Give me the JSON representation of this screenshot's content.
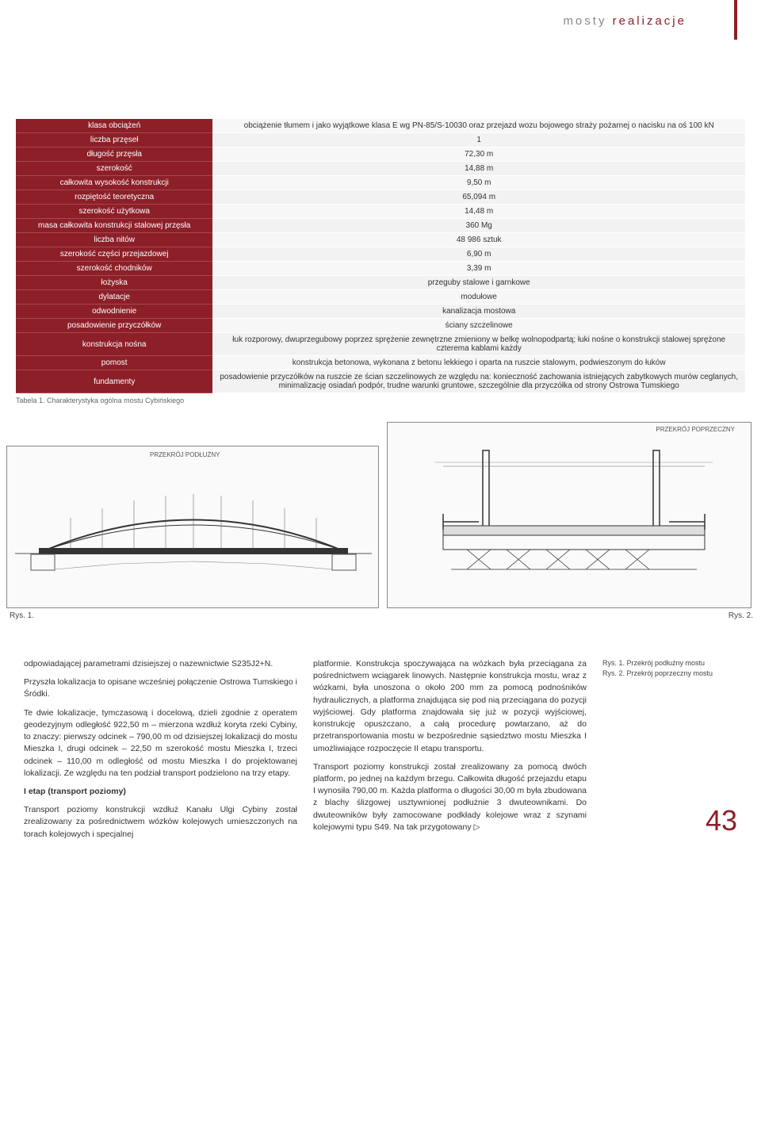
{
  "header": {
    "word1": "mosty",
    "word2": "realizacje"
  },
  "table": {
    "caption": "Tabela 1. Charakterystyka ogólna mostu Cybińskiego",
    "rows": [
      {
        "label": "klasa obciążeń",
        "value": "obciążenie tłumem i jako wyjątkowe klasa E wg PN-85/S-10030 oraz przejazd wozu bojowego straży pożarnej o nacisku na oś 100 kN"
      },
      {
        "label": "liczba przęseł",
        "value": "1"
      },
      {
        "label": "długość przęsła",
        "value": "72,30 m"
      },
      {
        "label": "szerokość",
        "value": "14,88 m"
      },
      {
        "label": "całkowita wysokość konstrukcji",
        "value": "9,50 m"
      },
      {
        "label": "rozpiętość teoretyczna",
        "value": "65,094 m"
      },
      {
        "label": "szerokość użytkowa",
        "value": "14,48 m"
      },
      {
        "label": "masa całkowita konstrukcji stalowej przęsła",
        "value": "360 Mg"
      },
      {
        "label": "liczba nitów",
        "value": "48 986 sztuk"
      },
      {
        "label": "szerokość części przejazdowej",
        "value": "6,90 m"
      },
      {
        "label": "szerokość chodników",
        "value": "3,39 m"
      },
      {
        "label": "łożyska",
        "value": "przeguby stalowe i garnkowe"
      },
      {
        "label": "dylatacje",
        "value": "modułowe"
      },
      {
        "label": "odwodnienie",
        "value": "kanalizacja mostowa"
      },
      {
        "label": "posadowienie przyczółków",
        "value": "ściany szczelinowe"
      },
      {
        "label": "konstrukcja nośna",
        "value": "łuk rozporowy, dwuprzegubowy poprzez sprężenie zewnętrzne zmieniony w belkę wolnopodpartą; łuki nośne o konstrukcji stalowej sprężone czterema kablami każdy"
      },
      {
        "label": "pomost",
        "value": "konstrukcja betonowa, wykonana z betonu lekkiego i oparta na ruszcie stalowym, podwieszonym do łuków"
      },
      {
        "label": "fundamenty",
        "value": "posadowienie przyczółków na ruszcie ze ścian szczelinowych ze względu na: konieczność zachowania istniejących zabytkowych murów ceglanych, minimalizację osiadań podpór, trudne warunki gruntowe, szczególnie dla przyczółka od strony Ostrowa Tumskiego"
      }
    ]
  },
  "figures": {
    "fig1_label": "Rys. 1.",
    "fig2_label": "Rys. 2.",
    "fig1_title": "PRZEKRÓJ PODŁUŻNY",
    "fig2_title": "PRZEKRÓJ POPRZECZNY",
    "side": {
      "line1": "Rys. 1. Przekrój podłużny mostu",
      "line2": "Rys. 2. Przekrój poprzeczny mostu"
    }
  },
  "body": {
    "col1": {
      "p1": "odpowiadającej parametrami dzisiejszej o nazewnictwie S235J2+N.",
      "p2": "Przyszła lokalizacja to opisane wcześniej połączenie Ostrowa Tumskiego i Śródki.",
      "p3": "Te dwie lokalizacje, tymczasową i docelową, dzieli zgodnie z operatem geodezyjnym odległość 922,50 m – mierzona wzdłuż koryta rzeki Cybiny, to znaczy: pierwszy odcinek – 790,00 m od dzisiejszej lokalizacji do mostu Mieszka I, drugi odcinek – 22,50 m szerokość mostu Mieszka I, trzeci odcinek – 110,00 m odległość od mostu Mieszka I do projektowanej lokalizacji. Ze względu na ten podział transport podzielono na trzy etapy.",
      "h1": "I etap (transport poziomy)",
      "p4": "Transport poziomy konstrukcji wzdłuż Kanału Ulgi Cybiny został zrealizowany za pośrednictwem wózków kolejowych umieszczonych na torach kolejowych i specjalnej"
    },
    "col2": {
      "p1": "platformie. Konstrukcja spoczywająca na wózkach była przeciągana za pośrednictwem wciągarek linowych. Następnie konstrukcja mostu, wraz z wózkami, była unoszona o około 200 mm za pomocą podnośników hydraulicznych, a platforma znajdująca się pod nią przeciągana do pozycji wyjściowej. Gdy platforma znajdowała się już w pozycji wyjściowej, konstrukcję opuszczano, a całą procedurę powtarzano, aż do przetransportowania mostu w bezpośrednie sąsiedztwo mostu Mieszka I umożliwiające rozpoczęcie II etapu transportu.",
      "p2": "Transport poziomy konstrukcji został zrealizowany za pomocą dwóch platform, po jednej na każdym brzegu. Całkowita długość przejazdu etapu I wynosiła 790,00 m. Każda platforma o długości 30,00 m była zbudowana z blachy ślizgowej usztywnionej podłużnie 3 dwuteownikami. Do dwuteowników były zamocowane podkłady kolejowe wraz z szynami kolejowymi typu S49. Na tak przygotowany ▷"
    }
  },
  "page_number": "43",
  "colors": {
    "accent": "#8c1f28",
    "header_label_bg": "#8c1f28",
    "value_bg": "#f5f5f5",
    "text": "#333333",
    "muted": "#888888"
  }
}
